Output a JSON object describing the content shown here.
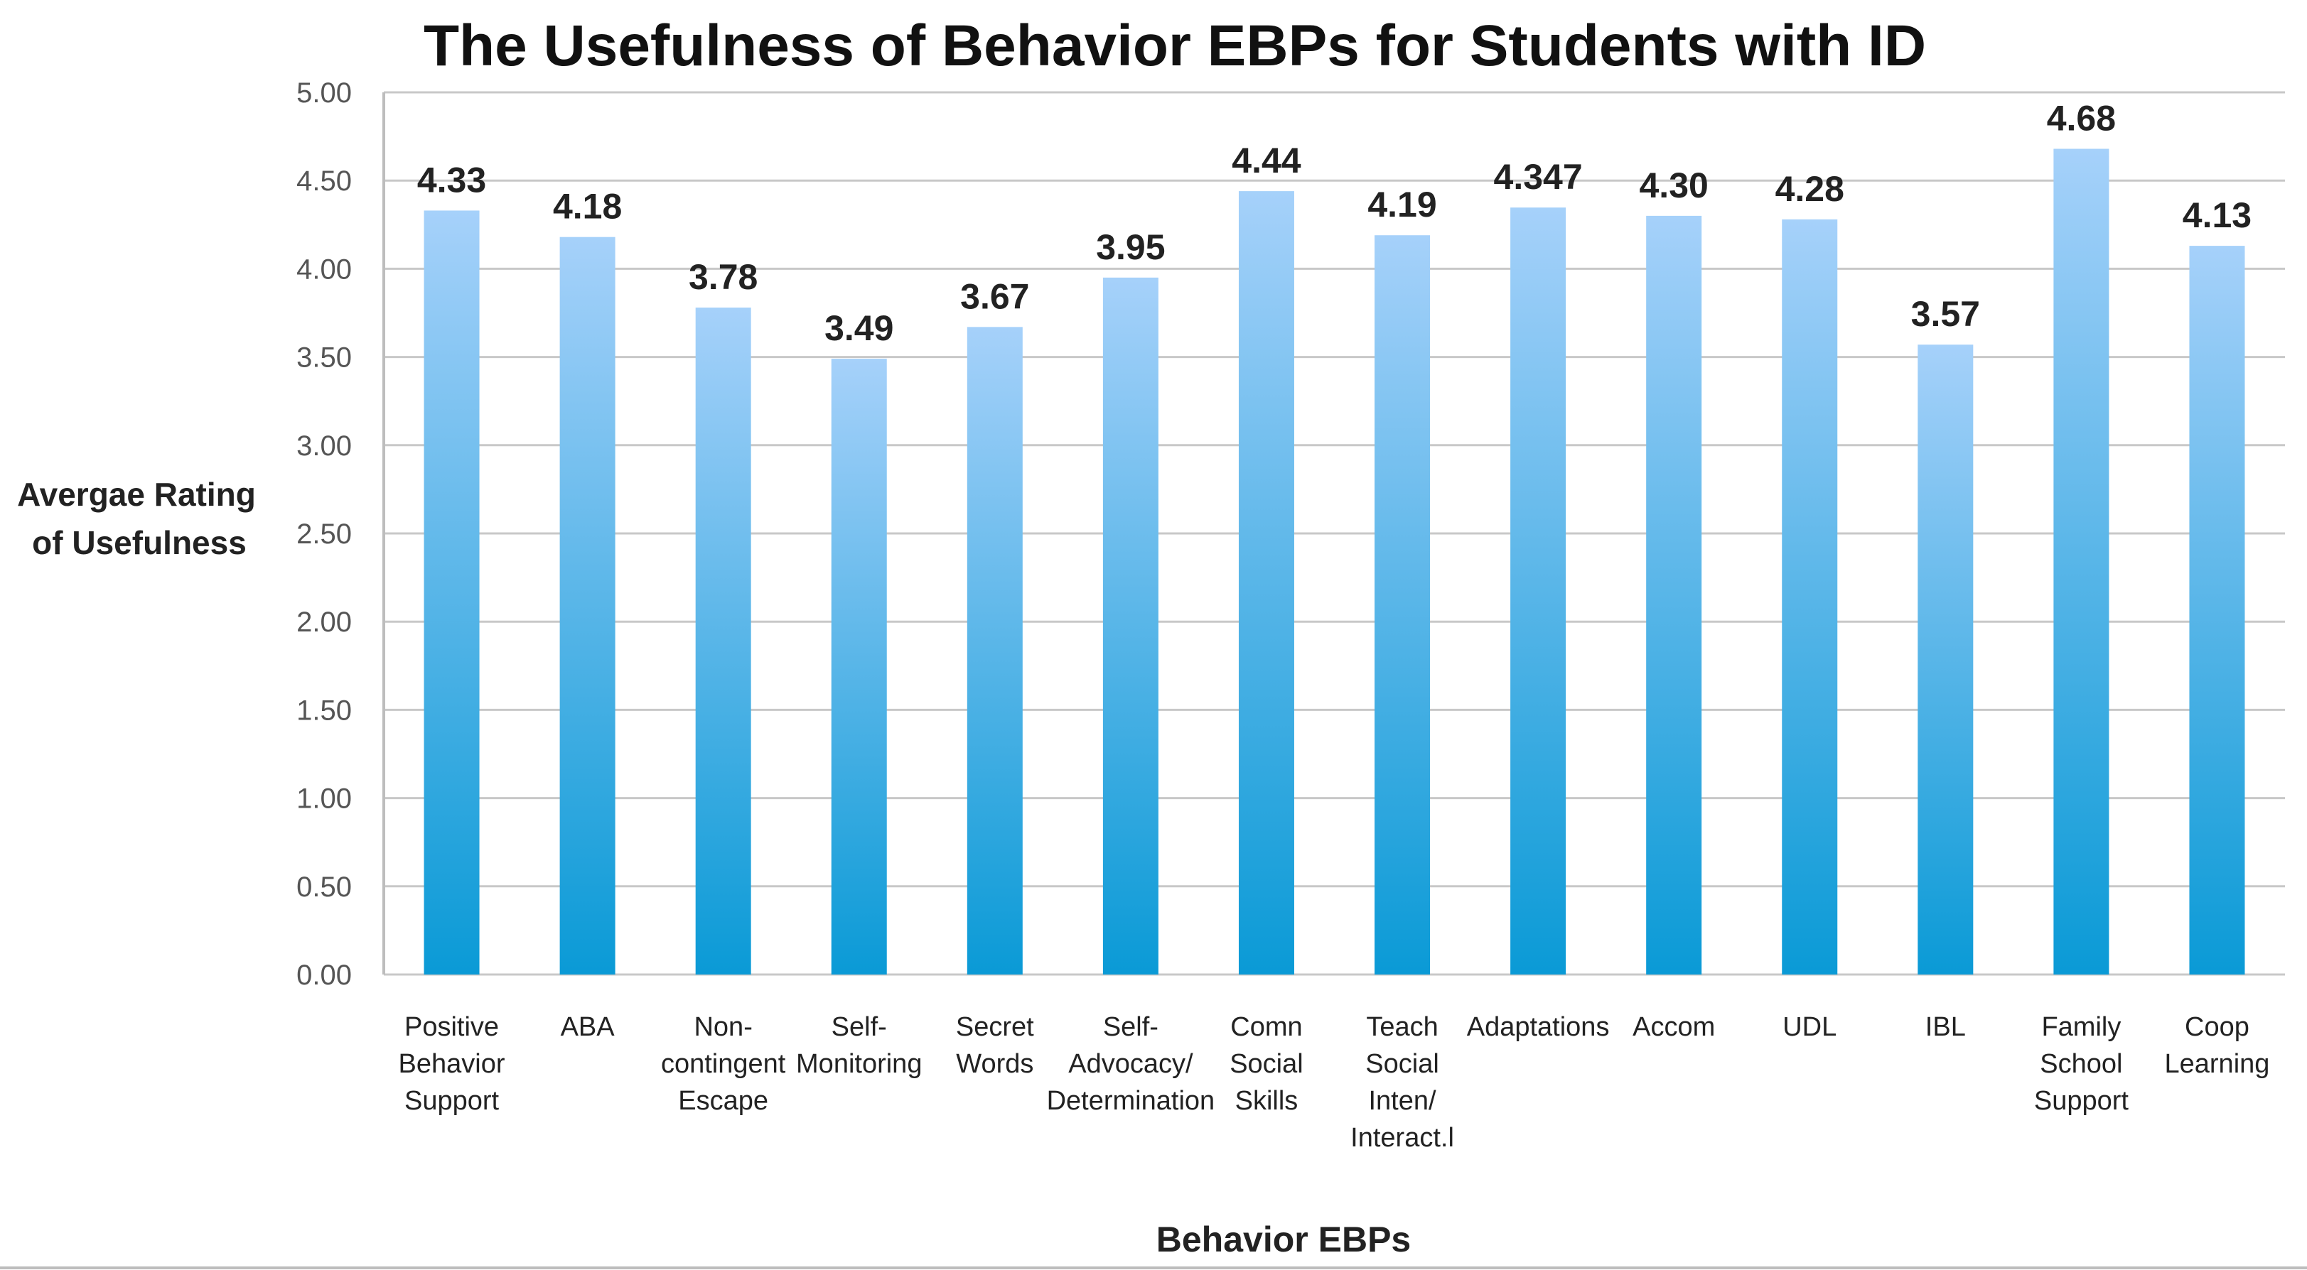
{
  "chart_data": {
    "type": "bar",
    "title": "The Usefulness of Behavior EBPs for Students with ID",
    "ylabel": [
      "Avergae Rating",
      "of Usefulness"
    ],
    "xlabel": "Behavior EBPs",
    "ylim": [
      0,
      5
    ],
    "yticks": [
      "0.00",
      "0.50",
      "1.00",
      "1.50",
      "2.00",
      "2.50",
      "3.00",
      "3.50",
      "4.00",
      "4.50",
      "5.00"
    ],
    "grid": true,
    "categories": [
      [
        "Positive",
        "Behavior",
        "Support"
      ],
      [
        "ABA"
      ],
      [
        "Non-",
        "contingent",
        "Escape"
      ],
      [
        "Self-",
        "Monitoring"
      ],
      [
        "Secret",
        "Words"
      ],
      [
        "Self-",
        "Advocacy/",
        "Determination"
      ],
      [
        "Comn",
        "Social",
        "Skills"
      ],
      [
        "Teach",
        "Social",
        "Inten/",
        "Interact.l"
      ],
      [
        "Adaptations"
      ],
      [
        "Accom"
      ],
      [
        "UDL"
      ],
      [
        "IBL"
      ],
      [
        "Family",
        "School",
        "Support"
      ],
      [
        "Coop",
        "Learning"
      ]
    ],
    "values": [
      4.33,
      4.18,
      3.78,
      3.49,
      3.67,
      3.95,
      4.44,
      4.19,
      4.347,
      4.3,
      4.28,
      3.57,
      4.68,
      4.13
    ],
    "labels": [
      "4.33",
      "4.18",
      "3.78",
      "3.49",
      "3.67",
      "3.95",
      "4.44",
      "4.19",
      "4.347",
      "4.30",
      "4.28",
      "3.57",
      "4.68",
      "4.13"
    ],
    "colors": {
      "bar_top": "#a6d1fa",
      "bar_bottom": "#0a9ad6"
    }
  }
}
